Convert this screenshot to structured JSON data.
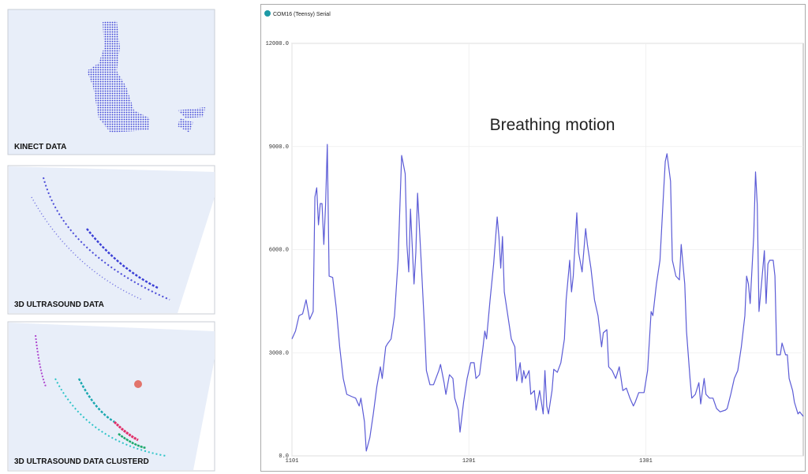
{
  "panels": [
    {
      "label": "KINECT DATA"
    },
    {
      "label": "3D ULTRASOUND DATA"
    },
    {
      "label": "3D ULTRASOUND DATA CLUSTERD"
    }
  ],
  "window": {
    "title": "COM16 (Teensy) Serial"
  },
  "chart_data": {
    "type": "line",
    "annotation": "Breathing motion",
    "x": [
      1101,
      1103,
      1105,
      1107,
      1109,
      1111,
      1113,
      1114,
      1115,
      1116,
      1117,
      1118,
      1119,
      1120,
      1121,
      1122,
      1124,
      1126,
      1128,
      1130,
      1132,
      1135,
      1137,
      1139,
      1140,
      1142,
      1143,
      1145,
      1147,
      1149,
      1151,
      1152,
      1154,
      1155,
      1157,
      1159,
      1161,
      1163,
      1165,
      1166,
      1167,
      1168,
      1170,
      1171,
      1172,
      1174,
      1176,
      1177,
      1179,
      1181,
      1184,
      1185,
      1187,
      1188,
      1190,
      1192,
      1193,
      1195,
      1196,
      1198,
      1200,
      1202,
      1204,
      1205,
      1207,
      1209,
      1210,
      1211,
      1213,
      1215,
      1217,
      1218,
      1219,
      1220,
      1221,
      1223,
      1225,
      1227,
      1228,
      1230,
      1231,
      1232,
      1233,
      1235,
      1236,
      1238,
      1239,
      1241,
      1243,
      1244,
      1245,
      1246,
      1248,
      1249,
      1251,
      1253,
      1255,
      1256,
      1258,
      1259,
      1260,
      1262,
      1263,
      1265,
      1267,
      1268,
      1270,
      1272,
      1274,
      1276,
      1277,
      1279,
      1280,
      1282,
      1284,
      1286,
      1287,
      1288,
      1290,
      1292,
      1294,
      1295,
      1297,
      1300,
      1302,
      1304,
      1305,
      1307,
      1309,
      1311,
      1312,
      1313,
      1315,
      1316,
      1318,
      1320,
      1321,
      1323,
      1324,
      1326,
      1327,
      1329,
      1331,
      1332,
      1334,
      1335,
      1337,
      1339,
      1341,
      1343,
      1346,
      1347,
      1349,
      1351,
      1353,
      1355,
      1357,
      1358,
      1359,
      1360,
      1362,
      1363,
      1364,
      1365,
      1367,
      1368,
      1369,
      1370,
      1371,
      1373,
      1374,
      1375,
      1377,
      1378,
      1380,
      1381,
      1382,
      1384,
      1385,
      1387,
      1388,
      1390
    ],
    "series": [
      {
        "color": "#5b5bd6",
        "values": [
          3400,
          3630,
          4080,
          4130,
          4540,
          3970,
          4200,
          7530,
          7800,
          6720,
          7340,
          7340,
          6150,
          7300,
          9060,
          5230,
          5190,
          4310,
          3170,
          2250,
          1790,
          1720,
          1680,
          1450,
          1680,
          990,
          140,
          530,
          1220,
          2020,
          2590,
          2250,
          3170,
          3260,
          3400,
          4080,
          5690,
          8740,
          8210,
          6150,
          5350,
          7180,
          5000,
          5920,
          7640,
          5690,
          3630,
          2480,
          2070,
          2070,
          2480,
          2660,
          2130,
          1790,
          2360,
          2250,
          1680,
          1330,
          690,
          1560,
          2250,
          2710,
          2710,
          2250,
          2360,
          3170,
          3630,
          3400,
          4540,
          5580,
          6950,
          6380,
          5460,
          6380,
          4770,
          4080,
          3400,
          3170,
          2180,
          2710,
          2130,
          2480,
          2250,
          2480,
          1790,
          1900,
          1330,
          1900,
          1220,
          2480,
          1450,
          1220,
          1900,
          2520,
          2430,
          2710,
          3400,
          4540,
          5690,
          4770,
          5230,
          7070,
          5920,
          5350,
          6610,
          6150,
          5460,
          4540,
          4080,
          3170,
          3580,
          3670,
          2590,
          2480,
          2250,
          2590,
          2250,
          1900,
          1970,
          1680,
          1450,
          1560,
          1840,
          1840,
          2480,
          4200,
          4080,
          5000,
          5690,
          7640,
          8560,
          8790,
          7990,
          5690,
          5230,
          5120,
          6150,
          5000,
          3630,
          2250,
          1680,
          1790,
          2130,
          1510,
          2250,
          1790,
          1680,
          1680,
          1380,
          1280,
          1330,
          1380,
          1790,
          2250,
          2480,
          3170,
          4080,
          5230,
          5000,
          4430,
          6380,
          8260,
          7300,
          4200,
          5350,
          5970,
          4430,
          5580,
          5690,
          5690,
          5230,
          2940,
          2940,
          3280,
          2940,
          2940,
          2250,
          1900,
          1560,
          1220,
          1280,
          1150
        ]
      }
    ],
    "xlim": [
      1101,
      1390
    ],
    "xticks": [
      1101,
      1201,
      1301
    ],
    "ylim": [
      0,
      12000
    ],
    "yticks": [
      {
        "value": 0,
        "label": "0.0"
      },
      {
        "value": 3000,
        "label": "3000.0"
      },
      {
        "value": 6000,
        "label": "6000.0"
      },
      {
        "value": 9000,
        "label": "9000.0"
      },
      {
        "value": 12000,
        "label": "12000.0"
      }
    ],
    "grid": true
  }
}
